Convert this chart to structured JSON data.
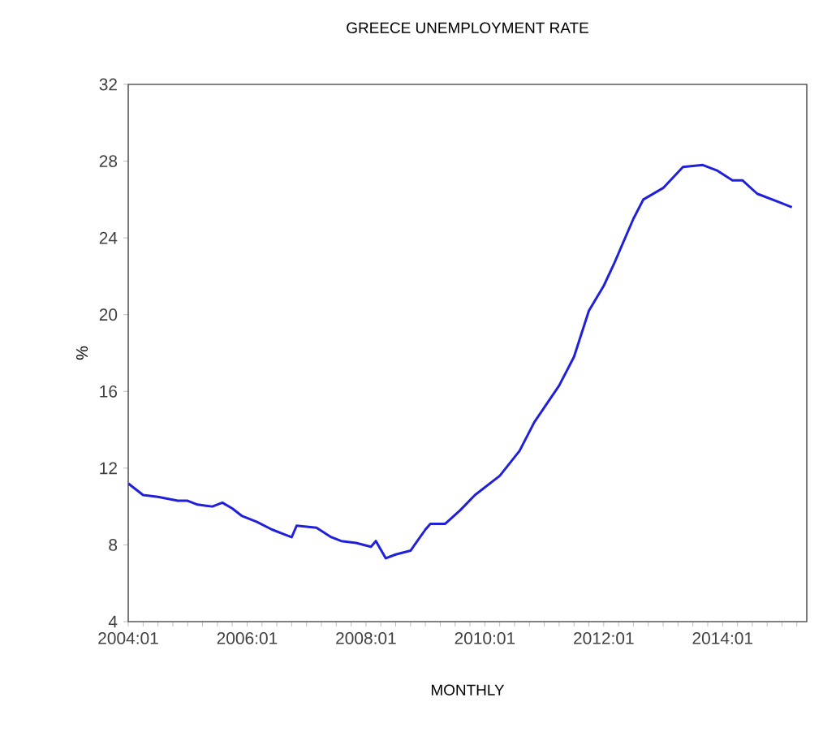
{
  "chart_data": {
    "type": "line",
    "title": "GREECE UNEMPLOYMENT RATE",
    "xlabel": "MONTHLY",
    "ylabel": "%",
    "color": "#2020d8",
    "x": [
      "2004-01",
      "2004-04",
      "2004-07",
      "2004-11",
      "2005-01",
      "2005-03",
      "2005-06",
      "2005-08",
      "2005-10",
      "2005-12",
      "2006-03",
      "2006-06",
      "2006-09",
      "2006-10",
      "2006-11",
      "2007-03",
      "2007-06",
      "2007-08",
      "2007-11",
      "2008-02",
      "2008-03",
      "2008-05",
      "2008-07",
      "2008-10",
      "2009-01",
      "2009-02",
      "2009-05",
      "2009-08",
      "2009-11",
      "2010-04",
      "2010-08",
      "2010-11",
      "2011-04",
      "2011-07",
      "2011-10",
      "2012-01",
      "2012-03",
      "2012-07",
      "2012-09",
      "2013-01",
      "2013-05",
      "2013-09",
      "2013-12",
      "2014-03",
      "2014-05",
      "2014-08",
      "2014-12",
      "2015-03"
    ],
    "values": [
      11.2,
      10.6,
      10.5,
      10.3,
      10.3,
      10.1,
      10.0,
      10.2,
      9.9,
      9.5,
      9.2,
      8.8,
      8.5,
      8.4,
      9.0,
      8.9,
      8.4,
      8.2,
      8.1,
      7.9,
      8.2,
      7.3,
      7.5,
      7.7,
      8.8,
      9.1,
      9.1,
      9.8,
      10.6,
      11.6,
      12.9,
      14.4,
      16.3,
      17.8,
      20.2,
      21.5,
      22.6,
      25.0,
      26.0,
      26.6,
      27.7,
      27.8,
      27.5,
      27.0,
      27.0,
      26.3,
      25.9,
      25.6
    ],
    "xlim": [
      "2004-01",
      "2015-06"
    ],
    "ylim": [
      4,
      32
    ],
    "yticks": [
      4,
      8,
      12,
      16,
      20,
      24,
      28,
      32
    ],
    "xticks": [
      {
        "value": "2004-01",
        "label": "2004:01"
      },
      {
        "value": "2004-04",
        "label": null
      },
      {
        "value": "2004-07",
        "label": null
      },
      {
        "value": "2004-10",
        "label": null
      },
      {
        "value": "2005-01",
        "label": null
      },
      {
        "value": "2005-04",
        "label": null
      },
      {
        "value": "2005-07",
        "label": null
      },
      {
        "value": "2005-10",
        "label": null
      },
      {
        "value": "2006-01",
        "label": "2006:01"
      },
      {
        "value": "2006-04",
        "label": null
      },
      {
        "value": "2006-07",
        "label": null
      },
      {
        "value": "2006-10",
        "label": null
      },
      {
        "value": "2007-01",
        "label": null
      },
      {
        "value": "2007-04",
        "label": null
      },
      {
        "value": "2007-07",
        "label": null
      },
      {
        "value": "2007-10",
        "label": null
      },
      {
        "value": "2008-01",
        "label": "2008:01"
      },
      {
        "value": "2008-04",
        "label": null
      },
      {
        "value": "2008-07",
        "label": null
      },
      {
        "value": "2008-10",
        "label": null
      },
      {
        "value": "2009-01",
        "label": null
      },
      {
        "value": "2009-04",
        "label": null
      },
      {
        "value": "2009-07",
        "label": null
      },
      {
        "value": "2009-10",
        "label": null
      },
      {
        "value": "2010-01",
        "label": "2010:01"
      },
      {
        "value": "2010-04",
        "label": null
      },
      {
        "value": "2010-07",
        "label": null
      },
      {
        "value": "2010-10",
        "label": null
      },
      {
        "value": "2011-01",
        "label": null
      },
      {
        "value": "2011-04",
        "label": null
      },
      {
        "value": "2011-07",
        "label": null
      },
      {
        "value": "2011-10",
        "label": null
      },
      {
        "value": "2012-01",
        "label": "2012:01"
      },
      {
        "value": "2012-04",
        "label": null
      },
      {
        "value": "2012-07",
        "label": null
      },
      {
        "value": "2012-10",
        "label": null
      },
      {
        "value": "2013-01",
        "label": null
      },
      {
        "value": "2013-04",
        "label": null
      },
      {
        "value": "2013-07",
        "label": null
      },
      {
        "value": "2013-10",
        "label": null
      },
      {
        "value": "2014-01",
        "label": "2014:01"
      },
      {
        "value": "2014-04",
        "label": null
      },
      {
        "value": "2014-07",
        "label": null
      },
      {
        "value": "2014-10",
        "label": null
      },
      {
        "value": "2015-01",
        "label": null
      },
      {
        "value": "2015-04",
        "label": null
      }
    ]
  }
}
